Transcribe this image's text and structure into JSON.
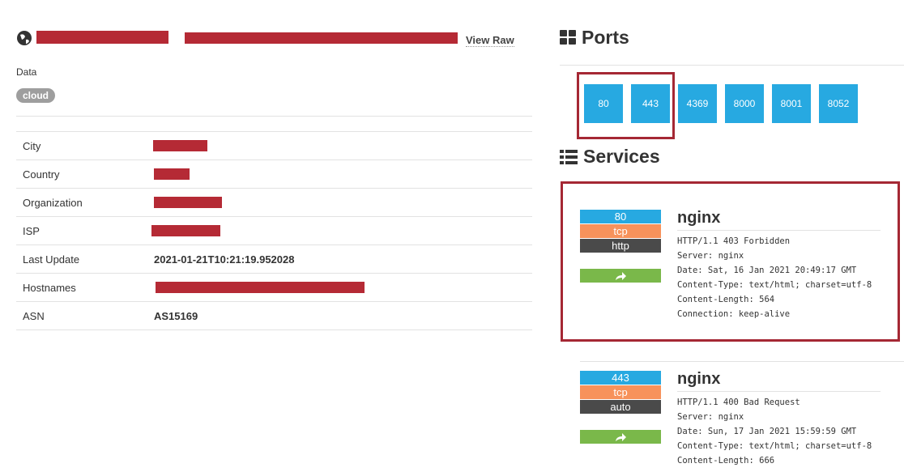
{
  "header": {
    "view_raw": "View Raw"
  },
  "tags": {
    "label": "Data",
    "items": [
      "cloud"
    ]
  },
  "info": {
    "rows": [
      {
        "label": "City"
      },
      {
        "label": "Country"
      },
      {
        "label": "Organization"
      },
      {
        "label": "ISP"
      },
      {
        "label": "Last Update",
        "value": "2021-01-21T10:21:19.952028"
      },
      {
        "label": "Hostnames"
      },
      {
        "label": "ASN",
        "value": "AS15169"
      }
    ]
  },
  "ports": {
    "title": "Ports",
    "items": [
      80,
      443,
      4369,
      8000,
      8001,
      8052
    ]
  },
  "services": {
    "title": "Services",
    "items": [
      {
        "port": 80,
        "transport": "tcp",
        "module": "http",
        "product": "nginx",
        "banner": [
          "HTTP/1.1 403 Forbidden",
          "Server: nginx",
          "Date: Sat, 16 Jan 2021 20:49:17 GMT",
          "Content-Type: text/html; charset=utf-8",
          "Content-Length: 564",
          "Connection: keep-alive"
        ]
      },
      {
        "port": 443,
        "transport": "tcp",
        "module": "auto",
        "product": "nginx",
        "banner": [
          "HTTP/1.1 400 Bad Request",
          "Server: nginx",
          "Date: Sun, 17 Jan 2021 15:59:59 GMT",
          "Content-Type: text/html; charset=utf-8",
          "Content-Length: 666"
        ]
      }
    ]
  }
}
